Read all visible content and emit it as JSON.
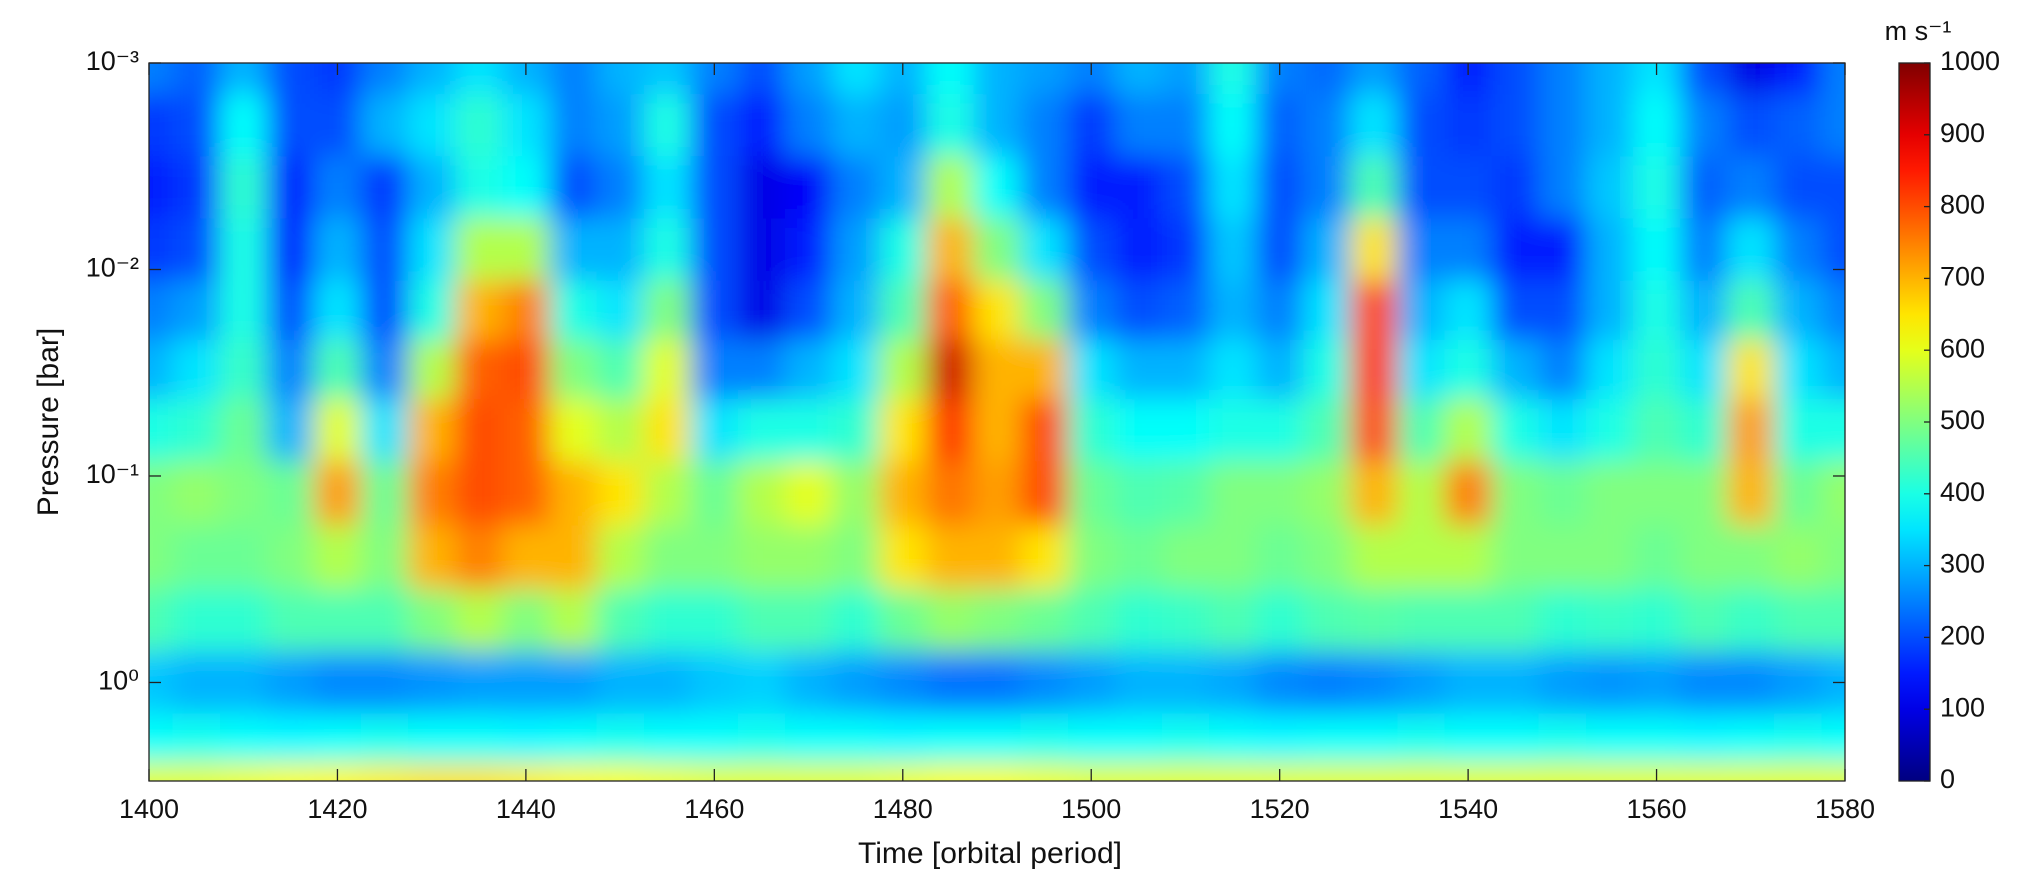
{
  "chart_data": {
    "type": "heatmap",
    "x_label": "Time [orbital period]",
    "y_label": "Pressure [bar]",
    "colorbar_label": "m s⁻¹",
    "colormap": "jet",
    "y_log": true,
    "y_inverted": true,
    "x": [
      1400,
      1405,
      1410,
      1415,
      1420,
      1425,
      1430,
      1435,
      1440,
      1445,
      1450,
      1455,
      1460,
      1465,
      1470,
      1475,
      1480,
      1485,
      1490,
      1495,
      1500,
      1505,
      1510,
      1515,
      1520,
      1525,
      1530,
      1535,
      1540,
      1545,
      1550,
      1555,
      1560,
      1565,
      1570,
      1575,
      1580
    ],
    "y": [
      0.001,
      0.002,
      0.004,
      0.008,
      0.016,
      0.03,
      0.06,
      0.12,
      0.25,
      0.5,
      1,
      2,
      3
    ],
    "values": [
      [
        250,
        220,
        300,
        200,
        180,
        250,
        300,
        350,
        300,
        250,
        300,
        320,
        250,
        200,
        280,
        350,
        300,
        380,
        300,
        280,
        250,
        300,
        280,
        400,
        250,
        230,
        280,
        220,
        150,
        200,
        250,
        300,
        350,
        200,
        100,
        150,
        250
      ],
      [
        180,
        200,
        380,
        200,
        200,
        300,
        350,
        420,
        350,
        250,
        280,
        400,
        200,
        150,
        250,
        300,
        280,
        400,
        300,
        250,
        180,
        250,
        250,
        380,
        220,
        250,
        350,
        200,
        180,
        200,
        250,
        300,
        380,
        250,
        200,
        220,
        250
      ],
      [
        150,
        180,
        420,
        150,
        250,
        180,
        300,
        400,
        380,
        200,
        250,
        350,
        200,
        100,
        120,
        250,
        300,
        550,
        380,
        250,
        150,
        150,
        200,
        350,
        200,
        250,
        450,
        200,
        200,
        180,
        250,
        320,
        400,
        220,
        250,
        200,
        200
      ],
      [
        180,
        200,
        400,
        150,
        300,
        200,
        350,
        550,
        550,
        300,
        300,
        400,
        200,
        100,
        150,
        280,
        400,
        700,
        500,
        350,
        200,
        150,
        180,
        320,
        200,
        300,
        650,
        250,
        250,
        150,
        150,
        300,
        380,
        250,
        350,
        250,
        200
      ],
      [
        250,
        280,
        400,
        200,
        350,
        200,
        400,
        700,
        750,
        400,
        350,
        500,
        200,
        100,
        200,
        300,
        450,
        780,
        650,
        500,
        250,
        200,
        220,
        300,
        250,
        350,
        800,
        300,
        350,
        200,
        200,
        300,
        400,
        300,
        450,
        300,
        250
      ],
      [
        300,
        350,
        430,
        250,
        450,
        250,
        550,
        780,
        800,
        500,
        450,
        600,
        250,
        250,
        300,
        350,
        550,
        920,
        700,
        700,
        350,
        300,
        300,
        350,
        300,
        400,
        820,
        350,
        400,
        300,
        250,
        350,
        420,
        350,
        650,
        350,
        300
      ],
      [
        400,
        420,
        480,
        300,
        600,
        350,
        700,
        800,
        780,
        600,
        550,
        650,
        350,
        400,
        400,
        420,
        650,
        820,
        700,
        800,
        420,
        380,
        380,
        400,
        400,
        450,
        800,
        450,
        550,
        400,
        350,
        400,
        450,
        420,
        720,
        400,
        400
      ],
      [
        500,
        520,
        500,
        480,
        720,
        480,
        750,
        800,
        780,
        700,
        650,
        550,
        480,
        550,
        600,
        520,
        700,
        760,
        720,
        800,
        480,
        450,
        460,
        500,
        500,
        520,
        700,
        550,
        750,
        500,
        480,
        500,
        500,
        500,
        700,
        480,
        520
      ],
      [
        500,
        480,
        480,
        500,
        550,
        500,
        700,
        750,
        700,
        700,
        550,
        500,
        500,
        520,
        520,
        500,
        650,
        700,
        700,
        650,
        500,
        480,
        500,
        500,
        480,
        500,
        550,
        550,
        550,
        500,
        500,
        500,
        480,
        500,
        500,
        520,
        500
      ],
      [
        450,
        420,
        420,
        450,
        450,
        450,
        500,
        550,
        500,
        550,
        450,
        420,
        420,
        450,
        450,
        420,
        480,
        520,
        500,
        480,
        450,
        420,
        430,
        450,
        420,
        450,
        460,
        450,
        450,
        450,
        420,
        430,
        420,
        450,
        430,
        450,
        450
      ],
      [
        320,
        300,
        300,
        280,
        260,
        260,
        270,
        280,
        280,
        280,
        300,
        300,
        320,
        330,
        300,
        280,
        260,
        240,
        240,
        260,
        280,
        300,
        300,
        290,
        260,
        250,
        260,
        280,
        300,
        300,
        280,
        270,
        280,
        260,
        260,
        280,
        300
      ],
      [
        380,
        390,
        380,
        370,
        380,
        390,
        380,
        380,
        370,
        380,
        390,
        380,
        380,
        390,
        380,
        380,
        370,
        380,
        380,
        390,
        380,
        380,
        390,
        380,
        370,
        380,
        380,
        390,
        380,
        380,
        390,
        380,
        380,
        370,
        380,
        390,
        380
      ],
      [
        600,
        600,
        610,
        620,
        630,
        640,
        650,
        650,
        640,
        630,
        620,
        610,
        600,
        600,
        600,
        600,
        610,
        620,
        620,
        610,
        600,
        600,
        600,
        600,
        600,
        600,
        600,
        600,
        600,
        600,
        600,
        600,
        600,
        600,
        600,
        600,
        600
      ]
    ],
    "xlim": [
      1400,
      1580
    ],
    "xticks": [
      1400,
      1420,
      1440,
      1460,
      1480,
      1500,
      1520,
      1540,
      1560,
      1580
    ],
    "ylim": [
      0.001,
      3
    ],
    "yticks": [
      {
        "value": 0.001,
        "label": "10⁻³"
      },
      {
        "value": 0.01,
        "label": "10⁻²"
      },
      {
        "value": 0.1,
        "label": "10⁻¹"
      },
      {
        "value": 1,
        "label": "10⁰"
      }
    ],
    "clim": [
      0,
      1000
    ],
    "cticks": [
      0,
      100,
      200,
      300,
      400,
      500,
      600,
      700,
      800,
      900,
      1000
    ]
  }
}
